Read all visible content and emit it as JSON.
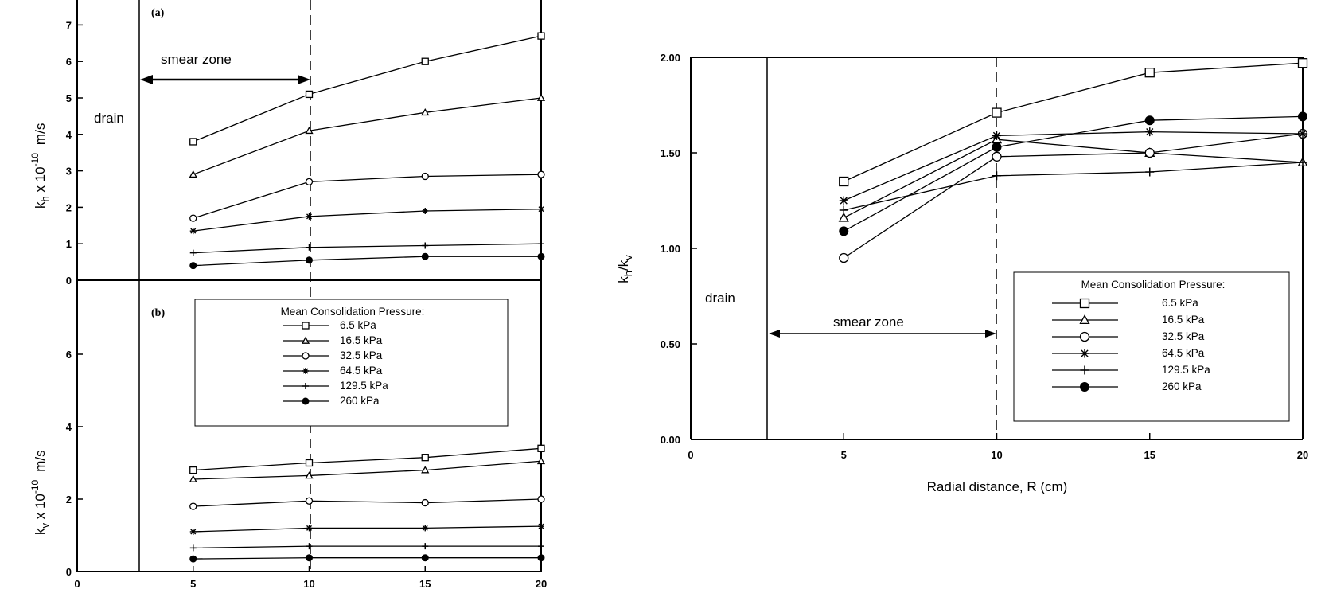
{
  "chart_data": [
    {
      "panel": "(a)",
      "type": "line",
      "ylabel": "k_h x 10^-10 m/s",
      "ylabel_main": "k",
      "ylabel_sub": "h",
      "ylabel_rest": " x 10",
      "ylabel_exp": "-10",
      "ylabel_unit": "m/s",
      "yticks": [
        0,
        1,
        2,
        3,
        4,
        5,
        6,
        7
      ],
      "x": [
        5,
        10,
        15,
        20
      ],
      "series": [
        {
          "name": "6.5 kPa",
          "marker": "square",
          "values": [
            3.8,
            5.1,
            6.0,
            6.7
          ]
        },
        {
          "name": "16.5 kPa",
          "marker": "triangle",
          "values": [
            2.9,
            4.1,
            4.6,
            5.0
          ]
        },
        {
          "name": "32.5 kPa",
          "marker": "circle",
          "values": [
            1.7,
            2.7,
            2.85,
            2.9
          ]
        },
        {
          "name": "64.5 kPa",
          "marker": "star",
          "values": [
            1.35,
            1.75,
            1.9,
            1.95
          ]
        },
        {
          "name": "129.5 kPa",
          "marker": "plus",
          "values": [
            0.75,
            0.9,
            0.95,
            1.0
          ]
        },
        {
          "name": "260 kPa",
          "marker": "dot",
          "values": [
            0.4,
            0.55,
            0.65,
            0.65
          ]
        }
      ],
      "annotations": {
        "smear": "smear zone",
        "drain": "drain"
      }
    },
    {
      "panel": "(b)",
      "type": "line",
      "ylabel_main": "k",
      "ylabel_sub": "v",
      "ylabel_rest": " x 10",
      "ylabel_exp": "-10",
      "ylabel_unit": "m/s",
      "yticks": [
        0,
        2,
        4,
        6
      ],
      "xticks": [
        0,
        5,
        10,
        15,
        20
      ],
      "xlabel": "Radial distance, R (cm)",
      "x": [
        5,
        10,
        15,
        20
      ],
      "series": [
        {
          "name": "6.5 kPa",
          "marker": "square",
          "values": [
            2.8,
            3.0,
            3.15,
            3.4
          ]
        },
        {
          "name": "16.5 kPa",
          "marker": "triangle",
          "values": [
            2.55,
            2.65,
            2.8,
            3.05
          ]
        },
        {
          "name": "32.5 kPa",
          "marker": "circle",
          "values": [
            1.8,
            1.95,
            1.9,
            2.0
          ]
        },
        {
          "name": "64.5 kPa",
          "marker": "star",
          "values": [
            1.1,
            1.2,
            1.2,
            1.25
          ]
        },
        {
          "name": "129.5 kPa",
          "marker": "plus",
          "values": [
            0.65,
            0.7,
            0.7,
            0.7
          ]
        },
        {
          "name": "260 kPa",
          "marker": "dot",
          "values": [
            0.35,
            0.38,
            0.38,
            0.38
          ]
        }
      ],
      "legend": {
        "title": "Mean Consolidation Pressure:",
        "entries": [
          "6.5 kPa",
          "16.5 kPa",
          "32.5 kPa",
          "64.5 kPa",
          "129.5 kPa",
          "260 kPa"
        ]
      }
    },
    {
      "type": "line",
      "ylabel_main": "k",
      "ylabel_sub": "h",
      "ylabel_mid": "/k",
      "ylabel_sub2": "v",
      "xlabel": "Radial distance, R (cm)",
      "xticks": [
        0,
        5,
        10,
        15,
        20
      ],
      "yticks": [
        "0.00",
        "0.50",
        "1.00",
        "1.50",
        "2.00"
      ],
      "ylim": [
        0,
        2.0
      ],
      "x": [
        5,
        10,
        15,
        20
      ],
      "series": [
        {
          "name": "6.5 kPa",
          "marker": "square",
          "values": [
            1.35,
            1.71,
            1.92,
            1.97
          ]
        },
        {
          "name": "16.5 kPa",
          "marker": "triangle",
          "values": [
            1.16,
            1.57,
            1.5,
            1.45
          ]
        },
        {
          "name": "32.5 kPa",
          "marker": "circle",
          "values": [
            0.95,
            1.48,
            1.5,
            1.6
          ]
        },
        {
          "name": "64.5 kPa",
          "marker": "star",
          "values": [
            1.25,
            1.59,
            1.61,
            1.6
          ]
        },
        {
          "name": "129.5 kPa",
          "marker": "plus",
          "values": [
            1.2,
            1.38,
            1.4,
            1.45
          ]
        },
        {
          "name": "260 kPa",
          "marker": "dot",
          "values": [
            1.09,
            1.53,
            1.67,
            1.69
          ]
        }
      ],
      "annotations": {
        "smear": "smear zone",
        "drain": "drain"
      },
      "legend": {
        "title": "Mean Consolidation Pressure:",
        "entries": [
          "6.5 kPa",
          "16.5 kPa",
          "32.5 kPa",
          "64.5 kPa",
          "129.5 kPa",
          "260 kPa"
        ]
      }
    }
  ]
}
